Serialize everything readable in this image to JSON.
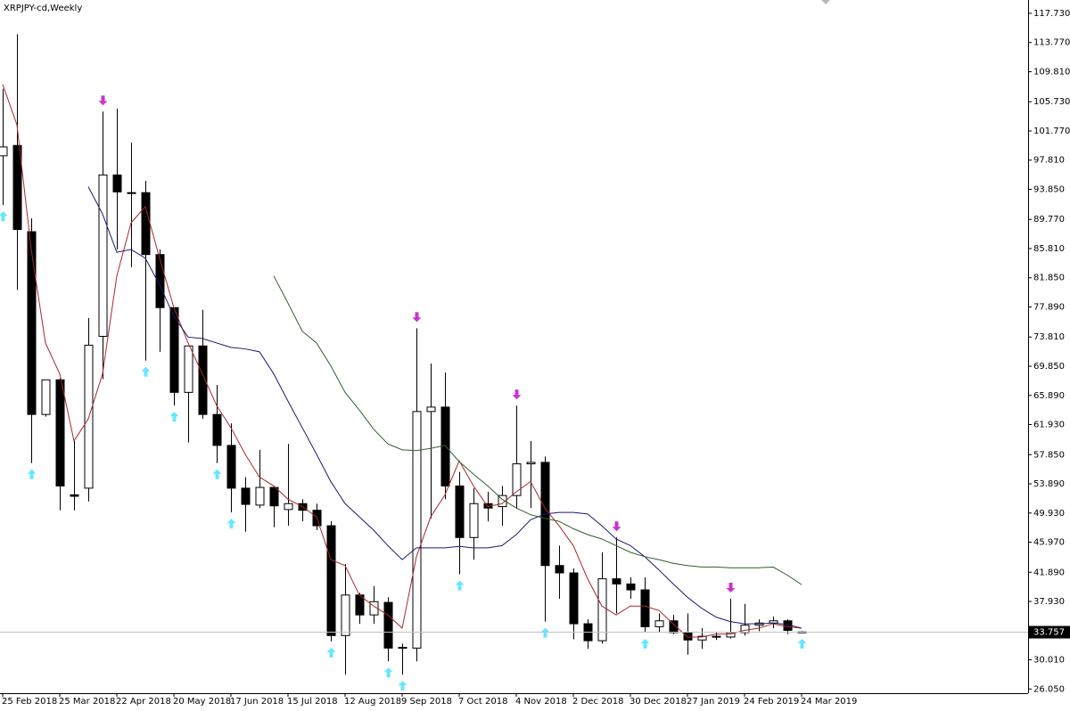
{
  "chart_data": {
    "type": "candlestick",
    "title": "XRPJPY-cd,Weekly",
    "categories": [
      "25 Feb 2018",
      null,
      null,
      null,
      "25 Mar 2018",
      null,
      null,
      null,
      "22 Apr 2018",
      null,
      null,
      null,
      "20 May 2018",
      null,
      null,
      null,
      "17 Jun 2018",
      null,
      null,
      null,
      "15 Jul 2018",
      null,
      null,
      null,
      "12 Aug 2018",
      null,
      null,
      null,
      "9 Sep 2018",
      null,
      null,
      null,
      "7 Oct 2018",
      null,
      null,
      null,
      "4 Nov 2018",
      null,
      null,
      null,
      "2 Dec 2018",
      null,
      null,
      null,
      "30 Dec 2018",
      null,
      null,
      null,
      "27 Jan 2019",
      null,
      null,
      null,
      "24 Feb 2019",
      null,
      null,
      null,
      "24 Mar 2019"
    ],
    "open": [
      98.4,
      99.8,
      88.1,
      63.3,
      68.0,
      52.4,
      53.3,
      73.9,
      95.8,
      93.4,
      93.4,
      85.0,
      77.8,
      66.3,
      72.6,
      63.3,
      59.1,
      53.3,
      51.0,
      53.4,
      50.4,
      51.2,
      50.3,
      48.2,
      33.3,
      38.8,
      36.1,
      37.8,
      31.7,
      31.6,
      63.7,
      64.3,
      53.6,
      46.6,
      51.2,
      50.8,
      52.3,
      56.6,
      56.8,
      42.8,
      41.8,
      34.9,
      32.6,
      41.0,
      40.3,
      39.5,
      34.5,
      35.3,
      33.7,
      32.7,
      33.2,
      33.1,
      33.7,
      34.7,
      35.0,
      35.3,
      33.8
    ],
    "high": [
      107.5,
      114.9,
      89.9,
      68.0,
      68.2,
      59.7,
      76.4,
      104.4,
      104.8,
      100.2,
      95.0,
      85.7,
      77.8,
      72.6,
      77.5,
      67.3,
      62.1,
      54.8,
      58.5,
      53.6,
      59.3,
      51.8,
      51.2,
      48.8,
      43.0,
      39.1,
      40.0,
      38.5,
      32.2,
      75.0,
      70.2,
      69.0,
      55.5,
      53.3,
      52.8,
      53.6,
      64.5,
      59.7,
      57.6,
      45.5,
      42.4,
      35.5,
      44.6,
      46.6,
      41.2,
      41.2,
      36.3,
      36.1,
      36.3,
      34.3,
      33.7,
      38.3,
      37.6,
      35.5,
      35.9,
      35.5,
      33.9
    ],
    "low": [
      91.7,
      80.2,
      56.7,
      63.0,
      50.3,
      50.3,
      51.5,
      68.1,
      85.7,
      83.3,
      70.6,
      71.8,
      64.5,
      59.5,
      62.7,
      56.7,
      50.0,
      47.4,
      50.6,
      48.0,
      48.2,
      48.8,
      47.6,
      32.5,
      28.0,
      34.9,
      34.9,
      29.8,
      28.0,
      29.8,
      49.2,
      51.8,
      41.6,
      43.6,
      48.8,
      48.2,
      50.6,
      50.6,
      35.2,
      38.3,
      32.8,
      31.5,
      32.2,
      36.3,
      38.3,
      33.7,
      33.7,
      33.5,
      30.7,
      31.5,
      32.7,
      32.9,
      33.3,
      33.9,
      34.3,
      33.5,
      33.7
    ],
    "close": [
      99.6,
      88.4,
      63.3,
      68.0,
      53.6,
      52.2,
      72.7,
      95.8,
      93.5,
      93.3,
      85.0,
      77.8,
      66.3,
      72.6,
      63.3,
      59.1,
      53.3,
      51.1,
      53.4,
      50.9,
      51.2,
      50.3,
      48.2,
      33.3,
      38.8,
      36.1,
      37.9,
      31.6,
      31.6,
      63.7,
      64.3,
      53.6,
      46.6,
      51.2,
      50.6,
      52.3,
      56.6,
      56.8,
      42.8,
      41.8,
      34.9,
      32.6,
      41.0,
      40.3,
      39.5,
      34.5,
      35.3,
      33.7,
      32.7,
      33.2,
      33.1,
      33.7,
      34.7,
      35.0,
      35.3,
      34.0,
      33.757
    ],
    "up_color": "#ffffff",
    "down_color": "#000000",
    "series": [
      {
        "color": "#a52a2a",
        "values": [
          108.1,
          102.6,
          85.7,
          73.0,
          68.8,
          59.7,
          62.7,
          68.8,
          82.1,
          89.3,
          91.5,
          84.5,
          77.8,
          73.0,
          68.8,
          64.5,
          61.5,
          57.9,
          54.8,
          53.6,
          51.8,
          50.8,
          49.4,
          43.6,
          42.8,
          38.8,
          37.3,
          36.1,
          34.3,
          44.0,
          49.4,
          52.4,
          57.0,
          53.6,
          50.8,
          51.2,
          52.8,
          54.2,
          50.6,
          48.2,
          45.5,
          41.0,
          37.3,
          36.1,
          37.3,
          37.3,
          36.7,
          34.9,
          33.1,
          33.1,
          33.5,
          33.5,
          34.0,
          34.3,
          34.9,
          34.5,
          34.3
        ]
      },
      {
        "color": "#191970",
        "values": [
          null,
          null,
          null,
          null,
          null,
          null,
          94.2,
          90.5,
          85.3,
          85.7,
          84.5,
          80.9,
          76.6,
          73.8,
          73.6,
          73.0,
          72.4,
          72.2,
          71.8,
          68.8,
          65.1,
          61.5,
          57.9,
          54.2,
          51.2,
          49.4,
          47.6,
          45.5,
          43.6,
          45.2,
          45.2,
          45.2,
          45.4,
          45.2,
          45.2,
          45.5,
          47.0,
          49.0,
          49.8,
          50.0,
          50.0,
          49.8,
          48.2,
          46.4,
          45.5,
          44.0,
          42.2,
          40.3,
          38.5,
          37.0,
          35.8,
          35.2,
          34.9,
          34.9,
          35.0,
          34.8,
          34.3
        ]
      },
      {
        "color": "#2f5f2f",
        "values": [
          null,
          null,
          null,
          null,
          null,
          null,
          null,
          null,
          null,
          null,
          null,
          null,
          null,
          null,
          null,
          null,
          null,
          null,
          null,
          82.1,
          78.4,
          74.6,
          73.0,
          69.9,
          66.3,
          63.9,
          61.3,
          59.3,
          58.5,
          58.4,
          58.7,
          59.1,
          56.9,
          55.2,
          53.6,
          51.8,
          50.6,
          49.7,
          49.2,
          48.8,
          47.8,
          47.0,
          46.4,
          45.5,
          44.6,
          44.0,
          43.6,
          43.1,
          42.8,
          42.6,
          42.6,
          42.5,
          42.5,
          42.5,
          42.6,
          41.5,
          40.2
        ]
      }
    ],
    "fractals_up": {
      "color": "#66e6ff",
      "values": [
        91.7,
        null,
        56.7,
        null,
        null,
        null,
        null,
        null,
        null,
        null,
        70.6,
        null,
        64.5,
        null,
        null,
        56.7,
        50.0,
        null,
        null,
        null,
        null,
        null,
        null,
        32.5,
        null,
        null,
        null,
        29.8,
        28.0,
        null,
        null,
        null,
        41.6,
        null,
        null,
        null,
        null,
        null,
        35.2,
        null,
        null,
        null,
        null,
        null,
        null,
        33.7,
        null,
        null,
        null,
        null,
        null,
        null,
        null,
        null,
        null,
        null,
        33.7
      ]
    },
    "fractals_down": {
      "color": "#cc33cc",
      "values": [
        null,
        null,
        null,
        null,
        null,
        null,
        null,
        104.4,
        null,
        null,
        null,
        null,
        null,
        null,
        null,
        null,
        null,
        null,
        null,
        null,
        null,
        null,
        null,
        null,
        null,
        null,
        null,
        null,
        null,
        75.0,
        null,
        null,
        null,
        null,
        null,
        null,
        64.5,
        null,
        null,
        null,
        null,
        null,
        null,
        46.6,
        null,
        null,
        null,
        null,
        null,
        null,
        null,
        38.3,
        null,
        null,
        null,
        null,
        null
      ]
    },
    "current_price": 33.757,
    "ylim": [
      25.48,
      119.54
    ],
    "yticks": [
      {
        "value": 117.73,
        "label": "117.730"
      },
      {
        "value": 113.77,
        "label": "113.770"
      },
      {
        "value": 109.81,
        "label": "109.810"
      },
      {
        "value": 105.73,
        "label": "105.730"
      },
      {
        "value": 101.77,
        "label": "101.770"
      },
      {
        "value": 97.81,
        "label": "97.810"
      },
      {
        "value": 93.85,
        "label": "93.850"
      },
      {
        "value": 89.77,
        "label": "89.770"
      },
      {
        "value": 85.81,
        "label": "85.810"
      },
      {
        "value": 81.85,
        "label": "81.850"
      },
      {
        "value": 77.89,
        "label": "77.890"
      },
      {
        "value": 73.81,
        "label": "73.810"
      },
      {
        "value": 69.85,
        "label": "69.850"
      },
      {
        "value": 65.89,
        "label": "65.890"
      },
      {
        "value": 61.93,
        "label": "61.930"
      },
      {
        "value": 57.85,
        "label": "57.850"
      },
      {
        "value": 53.89,
        "label": "53.890"
      },
      {
        "value": 49.93,
        "label": "49.930"
      },
      {
        "value": 45.97,
        "label": "45.970"
      },
      {
        "value": 41.89,
        "label": "41.890"
      },
      {
        "value": 37.93,
        "label": "37.930"
      },
      {
        "value": 30.01,
        "label": "30.010"
      },
      {
        "value": 26.05,
        "label": "26.050"
      }
    ]
  }
}
